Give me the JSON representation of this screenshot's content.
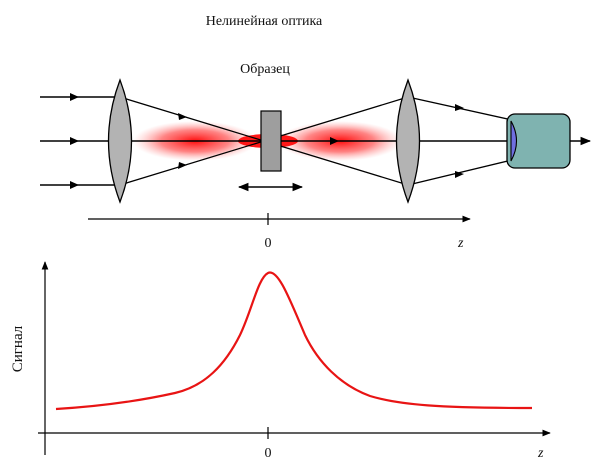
{
  "title": "Нелинейная оптика",
  "sample_label": "Образец",
  "top_axis": {
    "origin_label": "0",
    "axis_label": "z"
  },
  "bottom_axis": {
    "origin_label": "0",
    "axis_label": "z",
    "ylabel": "Сигнал"
  },
  "colors": {
    "beam": "#ff0000",
    "lens": "#b3b3b3",
    "sample": "#9e9e9e",
    "detector": "#7fb3b0",
    "detector_window": "#6f6fe0",
    "signal_curve": "#e81414",
    "lines": "#000000"
  },
  "icons": {
    "lens": "biconvex-lens",
    "detector": "photodetector",
    "motion": "double-headed-arrow"
  }
}
